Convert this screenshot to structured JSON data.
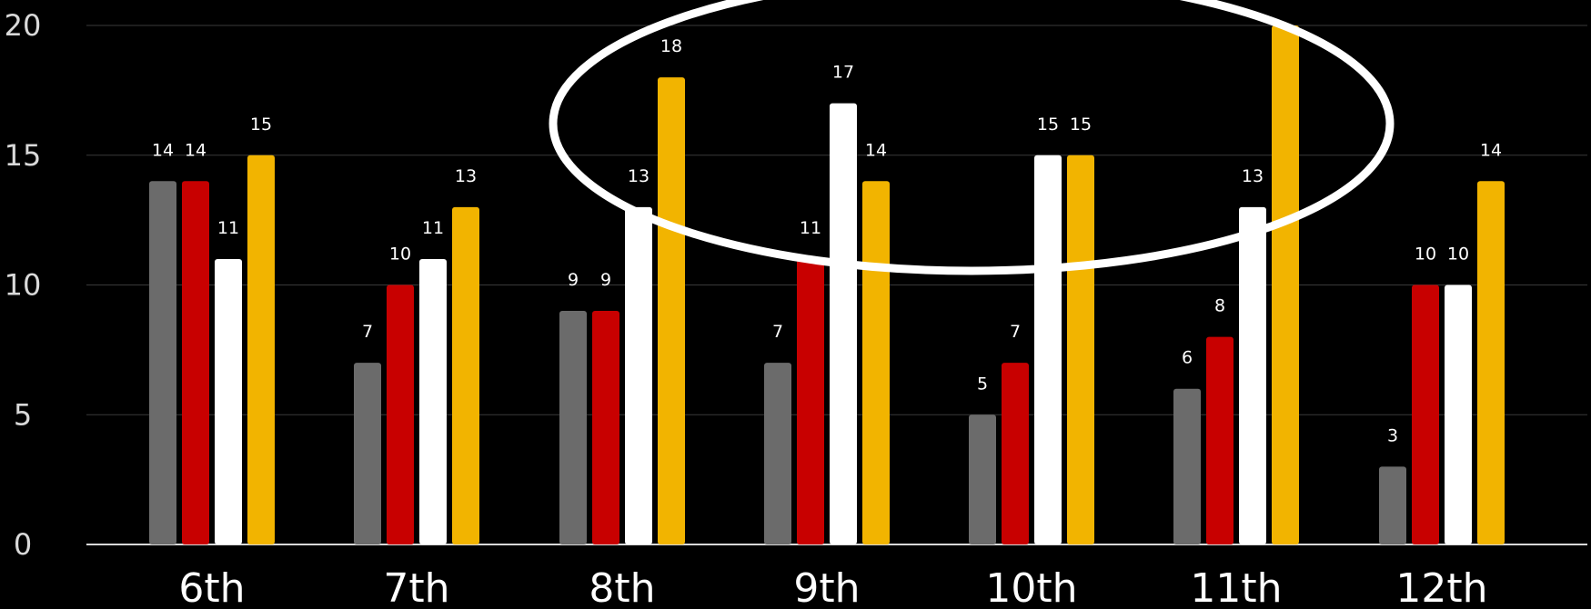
{
  "chart_data": {
    "type": "bar",
    "categories": [
      "6th",
      "7th",
      "8th",
      "9th",
      "10th",
      "11th",
      "12th"
    ],
    "series": [
      {
        "color": "#6b6b6b",
        "values": [
          14,
          7,
          9,
          7,
          5,
          6,
          3
        ]
      },
      {
        "color": "#c80000",
        "values": [
          14,
          10,
          9,
          11,
          7,
          8,
          10
        ]
      },
      {
        "color": "#ffffff",
        "values": [
          11,
          11,
          13,
          17,
          15,
          13,
          10
        ]
      },
      {
        "color": "#f2b400",
        "values": [
          15,
          13,
          18,
          14,
          15,
          20,
          14
        ]
      }
    ],
    "y_ticks": [
      "0",
      "5",
      "10",
      "15",
      "20"
    ],
    "ylim": [
      0,
      20
    ],
    "data_labels": [
      [
        "14",
        "7",
        "9",
        "7",
        "5",
        "6",
        "3"
      ],
      [
        "14",
        "10",
        "9",
        "11",
        "7",
        "8",
        "10"
      ],
      [
        "11",
        "11",
        "13",
        "17",
        "15",
        "13",
        "10"
      ],
      [
        "15",
        "13",
        "18",
        "14",
        "15",
        "",
        "14"
      ]
    ],
    "grid": true,
    "legend": "none",
    "annotation": "white ellipse outline circling the upper bars of 8th through 11th"
  }
}
